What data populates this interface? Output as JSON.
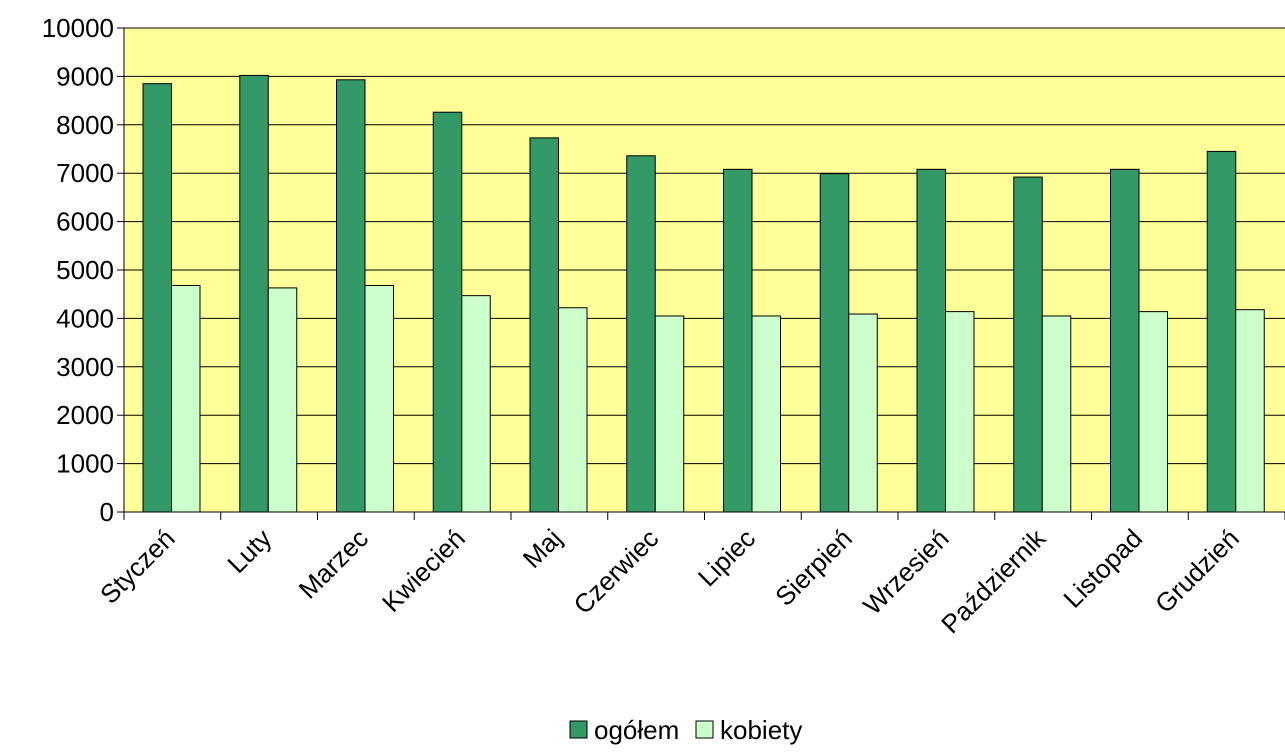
{
  "chart_data": {
    "type": "bar",
    "title": "",
    "xlabel": "",
    "ylabel": "",
    "categories": [
      "Styczeń",
      "Luty",
      "Marzec",
      "Kwiecień",
      "Maj",
      "Czerwiec",
      "Lipiec",
      "Sierpień",
      "Wrzesień",
      "Październik",
      "Listopad",
      "Grudzień"
    ],
    "series": [
      {
        "name": "ogółem",
        "color": "#339966",
        "values": [
          8850,
          9020,
          8930,
          8260,
          7730,
          7360,
          7080,
          6990,
          7080,
          6920,
          7080,
          7450
        ]
      },
      {
        "name": "kobiety",
        "color": "#ccffcc",
        "values": [
          4680,
          4630,
          4680,
          4470,
          4220,
          4050,
          4050,
          4090,
          4140,
          4050,
          4140,
          4180
        ]
      }
    ],
    "ylim": [
      0,
      10000
    ],
    "yticks": [
      0,
      1000,
      2000,
      3000,
      4000,
      5000,
      6000,
      7000,
      8000,
      9000,
      10000
    ],
    "grid": true,
    "plot_background": "#ffff99",
    "bar_stroke": "#000000",
    "legend_position": "bottom"
  }
}
